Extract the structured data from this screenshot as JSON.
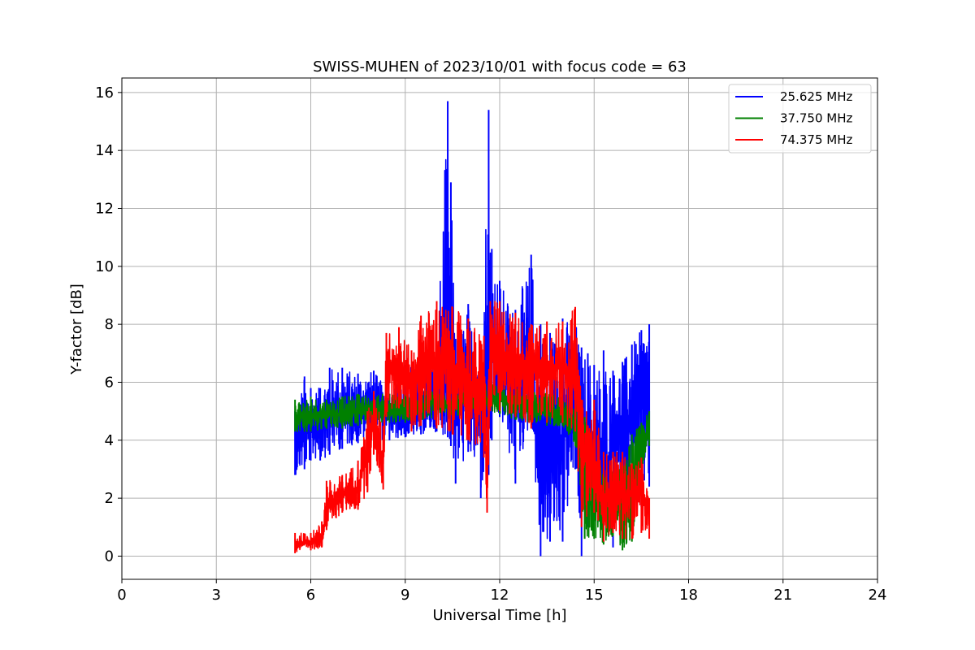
{
  "chart_data": {
    "type": "line",
    "title": "SWISS-MUHEN of 2023/10/01 with focus code = 63",
    "xlabel": "Universal Time [h]",
    "ylabel": "Y-factor [dB]",
    "xlim": [
      0,
      24
    ],
    "ylim": [
      -0.8,
      16.5
    ],
    "xticks": [
      "0",
      "3",
      "6",
      "9",
      "12",
      "15",
      "18",
      "21",
      "24"
    ],
    "yticks": [
      "0",
      "2",
      "4",
      "6",
      "8",
      "10",
      "12",
      "14",
      "16"
    ],
    "grid": true,
    "legend_position": "upper-right",
    "series": [
      {
        "name": "25.625 MHz",
        "color": "#0000ff",
        "x": [
          5.5,
          5.8,
          6.0,
          6.3,
          6.6,
          7.0,
          7.5,
          8.0,
          8.5,
          9.0,
          9.5,
          10.0,
          10.35,
          10.45,
          10.6,
          11.0,
          11.4,
          11.65,
          11.75,
          12.0,
          12.5,
          13.0,
          13.3,
          13.6,
          14.0,
          14.4,
          14.6,
          14.8,
          15.0,
          15.3,
          15.6,
          15.9,
          16.2,
          16.5,
          16.75
        ],
        "y": [
          3.6,
          4.2,
          4.4,
          4.6,
          5.0,
          5.0,
          5.1,
          5.2,
          4.8,
          4.6,
          4.8,
          5.2,
          5.8,
          6.0,
          5.6,
          5.4,
          5.6,
          6.0,
          7.0,
          6.2,
          6.0,
          5.8,
          3.2,
          3.4,
          4.2,
          5.2,
          2.4,
          3.6,
          3.0,
          2.4,
          4.2,
          4.6,
          4.8,
          5.4,
          6.2
        ],
        "y_min": [
          2.8,
          3.0,
          3.3,
          3.3,
          3.5,
          3.7,
          3.9,
          4.0,
          4.0,
          4.1,
          4.2,
          4.3,
          4.1,
          3.8,
          2.5,
          3.6,
          2.0,
          2.8,
          4.0,
          4.8,
          2.5,
          4.7,
          0.0,
          0.5,
          0.5,
          3.0,
          0.0,
          1.0,
          1.2,
          0.9,
          0.3,
          1.0,
          1.6,
          1.7,
          2.4
        ],
        "y_max": [
          5.0,
          6.2,
          5.8,
          5.8,
          6.5,
          6.5,
          6.3,
          6.4,
          5.6,
          6.6,
          6.7,
          7.2,
          15.7,
          12.9,
          7.5,
          8.7,
          6.9,
          15.4,
          10.6,
          9.5,
          8.5,
          10.4,
          8.0,
          7.7,
          8.2,
          8.3,
          7.2,
          7.0,
          6.6,
          7.1,
          6.4,
          6.7,
          7.3,
          7.8,
          8.0
        ]
      },
      {
        "name": "37.750 MHz",
        "color": "#008000",
        "x": [
          5.5,
          6.0,
          6.5,
          7.0,
          7.5,
          8.0,
          8.5,
          9.0,
          9.5,
          10.0,
          10.5,
          11.0,
          11.5,
          12.0,
          12.5,
          13.0,
          13.5,
          14.0,
          14.4,
          14.7,
          15.0,
          15.3,
          15.6,
          15.9,
          16.2,
          16.5,
          16.75
        ],
        "y": [
          4.8,
          4.8,
          4.9,
          4.9,
          5.0,
          5.0,
          5.0,
          5.1,
          5.2,
          5.3,
          5.3,
          5.4,
          5.4,
          5.4,
          5.2,
          5.1,
          5.0,
          5.0,
          4.6,
          2.5,
          1.8,
          1.3,
          1.8,
          1.4,
          2.5,
          3.8,
          4.5
        ],
        "y_min": [
          4.3,
          4.3,
          4.4,
          4.4,
          4.5,
          4.5,
          4.6,
          4.6,
          4.7,
          4.8,
          4.8,
          4.9,
          5.0,
          4.9,
          4.7,
          4.6,
          4.5,
          4.5,
          3.8,
          0.6,
          0.6,
          0.4,
          0.7,
          0.2,
          0.5,
          2.8,
          3.8
        ],
        "y_max": [
          5.4,
          5.5,
          5.4,
          5.5,
          5.6,
          5.6,
          5.6,
          5.6,
          5.7,
          5.8,
          5.8,
          5.9,
          5.9,
          6.0,
          5.8,
          5.7,
          5.6,
          5.6,
          5.4,
          4.8,
          3.6,
          3.0,
          3.5,
          3.2,
          4.2,
          4.6,
          5.0
        ]
      },
      {
        "name": "74.375 MHz",
        "color": "#ff0000",
        "x": [
          5.5,
          6.0,
          6.35,
          6.5,
          7.0,
          7.5,
          7.8,
          8.0,
          8.3,
          8.4,
          8.8,
          9.2,
          9.5,
          10.0,
          10.5,
          11.0,
          11.5,
          11.6,
          11.7,
          12.0,
          12.5,
          13.0,
          13.5,
          14.0,
          14.4,
          14.6,
          15.0,
          15.3,
          15.6,
          15.9,
          16.2,
          16.5,
          16.75
        ],
        "y": [
          0.4,
          0.5,
          0.6,
          1.6,
          2.1,
          2.4,
          3.5,
          4.6,
          3.2,
          6.8,
          6.4,
          6.0,
          6.8,
          6.8,
          6.6,
          6.1,
          5.5,
          2.5,
          7.0,
          7.0,
          6.8,
          6.5,
          6.6,
          6.5,
          6.0,
          3.4,
          3.3,
          2.0,
          2.3,
          2.0,
          2.2,
          2.4,
          1.5
        ],
        "y_min": [
          0.1,
          0.2,
          0.3,
          0.9,
          1.5,
          1.6,
          2.2,
          3.5,
          2.3,
          4.8,
          5.1,
          4.3,
          4.5,
          4.4,
          4.2,
          4.0,
          3.4,
          1.5,
          5.0,
          5.0,
          4.8,
          4.4,
          4.6,
          4.6,
          4.3,
          1.0,
          1.5,
          0.5,
          0.8,
          0.6,
          0.6,
          0.8,
          0.6
        ],
        "y_max": [
          0.8,
          0.8,
          1.2,
          2.6,
          2.8,
          3.3,
          5.0,
          5.7,
          4.5,
          7.7,
          7.9,
          7.1,
          8.3,
          8.8,
          8.6,
          8.2,
          7.6,
          4.8,
          8.8,
          8.8,
          8.4,
          8.0,
          8.1,
          8.1,
          8.6,
          5.4,
          5.4,
          3.6,
          3.6,
          3.6,
          3.2,
          3.4,
          2.0
        ]
      }
    ]
  }
}
